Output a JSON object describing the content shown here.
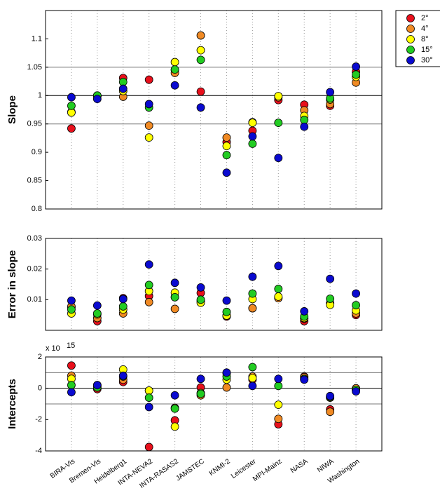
{
  "chart_data": {
    "type": "dot",
    "categories": [
      "BIRA-Vis",
      "Bremen-Vis",
      "Heidelberg1",
      "INTA-NEVA2",
      "INTA-RASAS2",
      "JAMSTEC",
      "KNMI-2",
      "Leicester",
      "MPI-Mainz",
      "NASA",
      "NIWA",
      "Washington"
    ],
    "series": [
      {
        "name": "2°",
        "color": "#e8101c"
      },
      {
        "name": "4°",
        "color": "#f08a24"
      },
      {
        "name": "8°",
        "color": "#ffff00"
      },
      {
        "name": "15°",
        "color": "#22cc22"
      },
      {
        "name": "30°",
        "color": "#0a0ad0"
      }
    ],
    "legend": "outside-right",
    "grid": true,
    "panels": [
      {
        "ylabel": "Slope",
        "ylim": [
          0.8,
          1.15
        ],
        "yticks": [
          0.8,
          0.85,
          0.9,
          0.95,
          1,
          1.05,
          1.1
        ],
        "hlines": [
          0.95,
          1,
          1.05
        ],
        "values": [
          [
            0.942,
            1.0,
            1.031,
            1.028,
            1.045,
            1.007,
            0.918,
            0.938,
            0.992,
            0.984,
            0.982,
            1.042
          ],
          [
            0.971,
            0.999,
            0.998,
            0.947,
            1.04,
            1.106,
            0.926,
            0.953,
            0.997,
            0.974,
            0.985,
            1.023
          ],
          [
            0.97,
            0.999,
            1.008,
            0.926,
            1.059,
            1.08,
            0.911,
            0.952,
            0.999,
            0.964,
            0.993,
            1.033
          ],
          [
            0.982,
            1.0,
            1.024,
            0.979,
            1.046,
            1.063,
            0.895,
            0.915,
            0.952,
            0.957,
            0.995,
            1.037
          ],
          [
            0.997,
            0.994,
            1.012,
            0.985,
            1.018,
            0.979,
            0.864,
            0.928,
            0.89,
            0.945,
            1.006,
            1.051
          ]
        ]
      },
      {
        "ylabel": "Error in slope",
        "ylim": [
          0,
          0.03
        ],
        "yticks": [
          0.01,
          0.02,
          0.03
        ],
        "hlines": [],
        "values": [
          [
            0.0075,
            0.003,
            0.0105,
            0.0112,
            0.0108,
            0.0122,
            0.0045,
            0.0072,
            0.0107,
            0.003,
            0.0088,
            0.005
          ],
          [
            0.0078,
            0.004,
            0.0055,
            0.0092,
            0.007,
            0.0095,
            0.0048,
            0.0072,
            0.0105,
            0.0038,
            0.0088,
            0.0055
          ],
          [
            0.0055,
            0.0052,
            0.0068,
            0.0128,
            0.0123,
            0.009,
            0.0048,
            0.0102,
            0.011,
            0.004,
            0.0083,
            0.0065
          ],
          [
            0.0068,
            0.0055,
            0.0078,
            0.0148,
            0.0108,
            0.01,
            0.006,
            0.012,
            0.0135,
            0.0045,
            0.0103,
            0.0082
          ],
          [
            0.0097,
            0.0081,
            0.0102,
            0.0215,
            0.0155,
            0.014,
            0.0097,
            0.0175,
            0.021,
            0.0062,
            0.0168,
            0.012
          ]
        ]
      },
      {
        "ylabel": "Intercepts",
        "ylim": [
          -4,
          2
        ],
        "yticks": [
          -4,
          -2,
          0,
          2
        ],
        "hlines": [
          -1,
          0,
          1
        ],
        "multiplier_base": "x 10",
        "multiplier_exponent": "15",
        "values": [
          [
            1.45,
            -0.05,
            0.4,
            -3.75,
            -2.05,
            0.05,
            0.95,
            0.55,
            -2.3,
            0.75,
            -1.35,
            -0.1
          ],
          [
            0.8,
            0.2,
            0.55,
            -0.15,
            -1.25,
            -0.45,
            0.05,
            0.75,
            -1.95,
            0.7,
            -1.5,
            0
          ],
          [
            0.6,
            0.1,
            1.2,
            -0.15,
            -2.45,
            -0.3,
            0.55,
            0.65,
            -1.05,
            0.6,
            -0.6,
            -0.1
          ],
          [
            0.2,
            0.05,
            0.75,
            -0.6,
            -1.3,
            -0.35,
            0.75,
            1.35,
            0.15,
            0.6,
            -0.55,
            -0.1
          ],
          [
            -0.25,
            0.2,
            0.8,
            -1.2,
            -0.45,
            0.6,
            1.0,
            0.15,
            0.6,
            0.55,
            -0.5,
            -0.2
          ]
        ]
      }
    ]
  }
}
